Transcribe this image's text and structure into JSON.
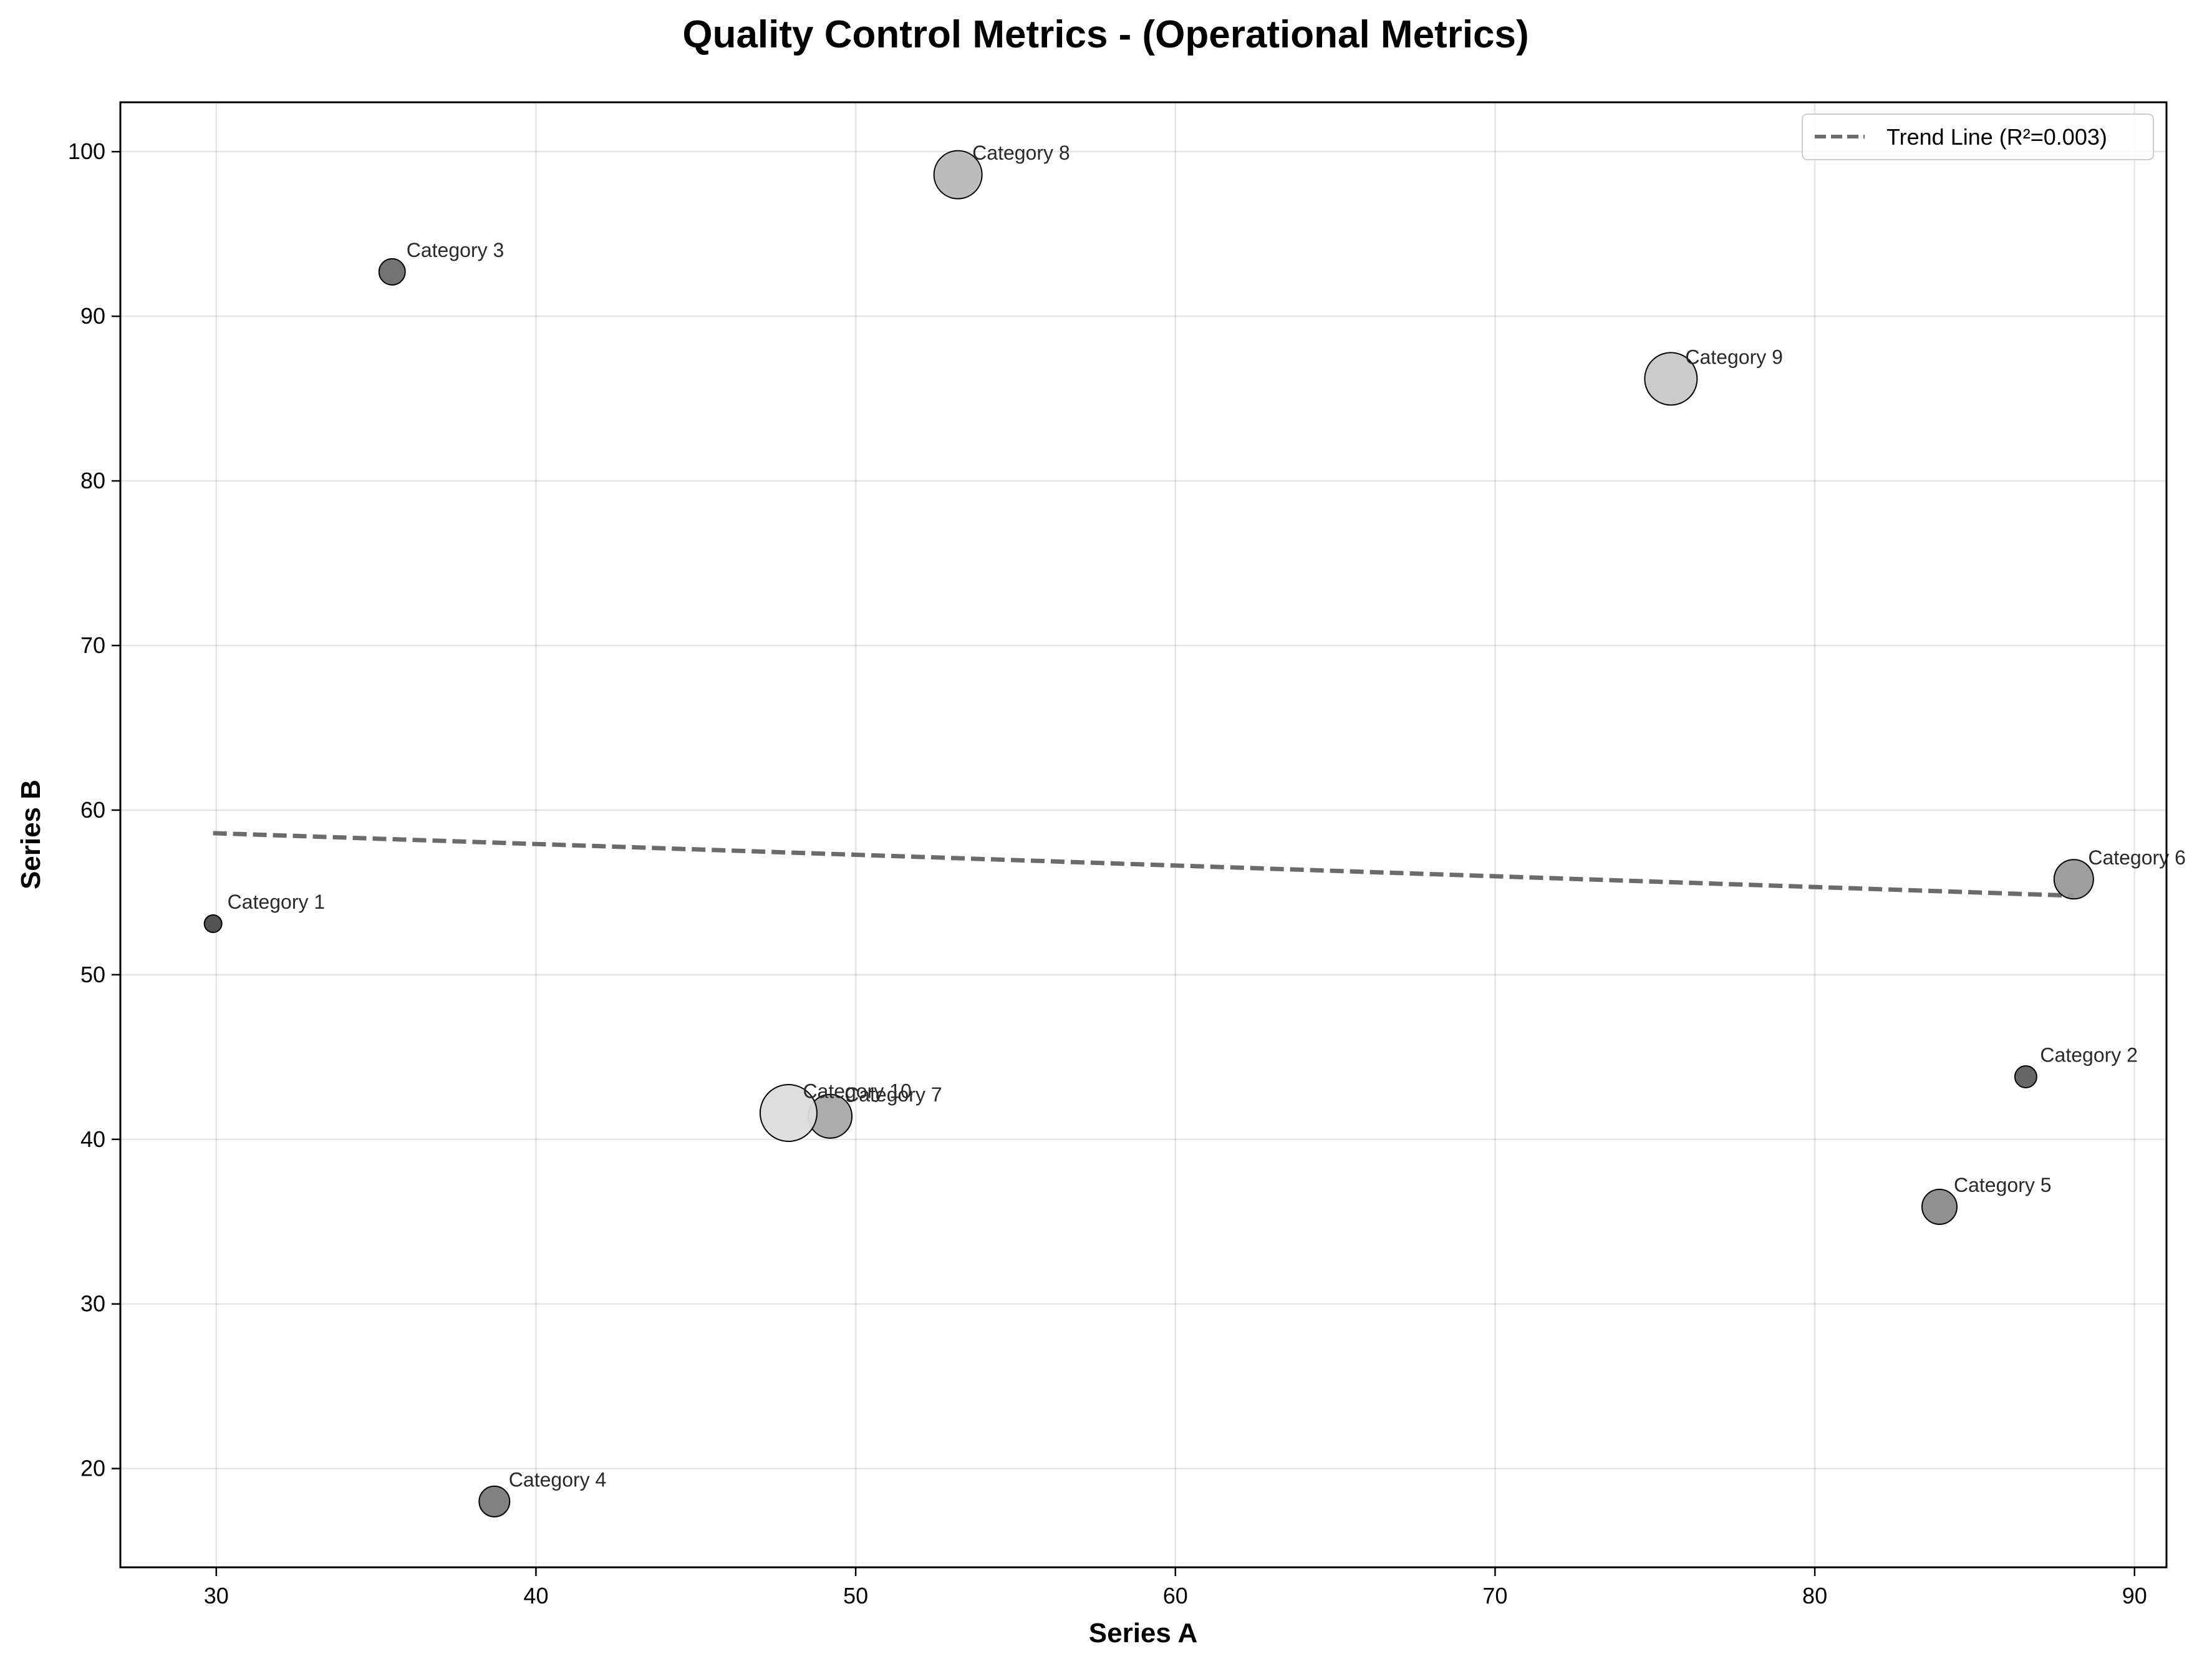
{
  "chart_data": {
    "type": "scatter",
    "title": "Quality Control Metrics - (Operational Metrics)",
    "xlabel": "Series A",
    "ylabel": "Series B",
    "xlim": [
      27,
      91
    ],
    "ylim": [
      14,
      103
    ],
    "xticks": [
      "30",
      "40",
      "50",
      "60",
      "70",
      "80",
      "90"
    ],
    "yticks": [
      "20",
      "30",
      "40",
      "50",
      "60",
      "70",
      "80",
      "90",
      "100"
    ],
    "grid": true,
    "legend_position": "top-right",
    "points": [
      {
        "label": "Category 1",
        "x": 29.9,
        "y": 53.1,
        "size": 1,
        "gray": "#4a4a4a"
      },
      {
        "label": "Category 2",
        "x": 86.6,
        "y": 43.8,
        "size": 2,
        "gray": "#5e5e5e"
      },
      {
        "label": "Category 3",
        "x": 35.5,
        "y": 92.7,
        "size": 3,
        "gray": "#6b6b6b"
      },
      {
        "label": "Category 4",
        "x": 38.7,
        "y": 18.0,
        "size": 4,
        "gray": "#7a7a7a"
      },
      {
        "label": "Category 5",
        "x": 83.9,
        "y": 35.9,
        "size": 5,
        "gray": "#8a8a8a"
      },
      {
        "label": "Category 6",
        "x": 88.1,
        "y": 55.8,
        "size": 6,
        "gray": "#9a9a9a"
      },
      {
        "label": "Category 7",
        "x": 49.2,
        "y": 41.4,
        "size": 7,
        "gray": "#a8a8a8"
      },
      {
        "label": "Category 8",
        "x": 53.2,
        "y": 98.6,
        "size": 8,
        "gray": "#b8b8b8"
      },
      {
        "label": "Category 9",
        "x": 75.5,
        "y": 86.2,
        "size": 9,
        "gray": "#c8c8c8"
      },
      {
        "label": "Category 10",
        "x": 47.9,
        "y": 41.6,
        "size": 10,
        "gray": "#dcdcdc"
      }
    ],
    "trend_line": {
      "label": "Trend Line (R²=0.003)",
      "x": [
        29.9,
        88.1
      ],
      "y": [
        58.6,
        54.8
      ],
      "color": "#6b6b6b",
      "style": "dashed"
    }
  }
}
